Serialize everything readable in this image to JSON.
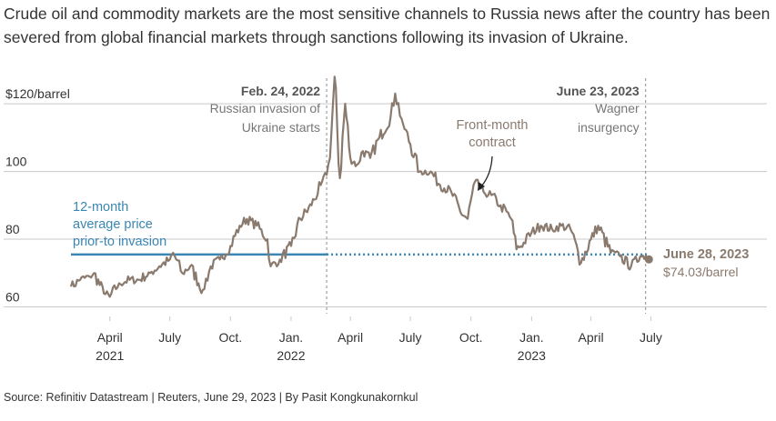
{
  "subtitle": "Crude oil and commodity markets are the most sensitive channels to Russia news after the country has been severed from global financial markets through sanctions following its invasion of Ukraine.",
  "source": "Source: Refinitiv Datastream | Reuters, June 29, 2023 | By Pasit Kongkunakornkul",
  "colors": {
    "price_line": "#8a7a6e",
    "average_line": "#3a86b4",
    "grid": "#c9c9c9",
    "event_line": "#8c8c8c",
    "text": "#333333",
    "muted_text": "#777777"
  },
  "chart_data": {
    "type": "line",
    "title": "",
    "xlabel": "",
    "ylabel": "$120/barrel",
    "ylim": [
      58,
      127
    ],
    "xlim": [
      "2021-02-01",
      "2023-07-10"
    ],
    "y_ticks": [
      {
        "value": 120,
        "label": "$120/barrel"
      },
      {
        "value": 100,
        "label": "100"
      },
      {
        "value": 80,
        "label": "80"
      },
      {
        "value": 60,
        "label": "60"
      }
    ],
    "x_ticks": [
      {
        "date": "2021-04-01",
        "label": "April",
        "sub": "2021"
      },
      {
        "date": "2021-07-01",
        "label": "July",
        "sub": ""
      },
      {
        "date": "2021-10-01",
        "label": "Oct.",
        "sub": ""
      },
      {
        "date": "2022-01-01",
        "label": "Jan.",
        "sub": "2022"
      },
      {
        "date": "2022-04-01",
        "label": "April",
        "sub": ""
      },
      {
        "date": "2022-07-01",
        "label": "July",
        "sub": ""
      },
      {
        "date": "2022-10-01",
        "label": "Oct.",
        "sub": ""
      },
      {
        "date": "2023-01-01",
        "label": "Jan.",
        "sub": "2023"
      },
      {
        "date": "2023-04-01",
        "label": "April",
        "sub": ""
      },
      {
        "date": "2023-07-01",
        "label": "July",
        "sub": ""
      }
    ],
    "series": [
      {
        "name": "Front-month contract",
        "x": [
          "2021-02-01",
          "2021-02-15",
          "2021-03-01",
          "2021-03-08",
          "2021-03-23",
          "2021-04-01",
          "2021-04-15",
          "2021-05-01",
          "2021-05-15",
          "2021-06-01",
          "2021-06-15",
          "2021-07-01",
          "2021-07-06",
          "2021-07-20",
          "2021-08-01",
          "2021-08-20",
          "2021-09-01",
          "2021-09-15",
          "2021-10-01",
          "2021-10-15",
          "2021-10-26",
          "2021-11-10",
          "2021-11-26",
          "2021-12-01",
          "2021-12-15",
          "2022-01-01",
          "2022-01-15",
          "2022-02-01",
          "2022-02-15",
          "2022-02-24",
          "2022-03-01",
          "2022-03-08",
          "2022-03-16",
          "2022-03-24",
          "2022-04-01",
          "2022-04-11",
          "2022-04-20",
          "2022-05-01",
          "2022-05-15",
          "2022-06-01",
          "2022-06-08",
          "2022-06-20",
          "2022-07-01",
          "2022-07-15",
          "2022-08-01",
          "2022-08-15",
          "2022-09-01",
          "2022-09-15",
          "2022-09-26",
          "2022-10-07",
          "2022-10-20",
          "2022-11-01",
          "2022-11-15",
          "2022-12-01",
          "2022-12-09",
          "2022-12-20",
          "2023-01-01",
          "2023-01-15",
          "2023-02-01",
          "2023-02-15",
          "2023-03-01",
          "2023-03-17",
          "2023-04-01",
          "2023-04-12",
          "2023-05-01",
          "2023-05-15",
          "2023-06-01",
          "2023-06-15",
          "2023-06-23",
          "2023-06-28"
        ],
        "values": [
          66,
          68,
          69,
          70,
          64,
          63,
          67,
          68,
          68,
          70,
          72,
          74,
          76,
          70,
          72,
          65,
          72,
          74,
          78,
          84,
          86,
          84,
          80,
          72,
          74,
          78,
          86,
          90,
          96,
          99,
          104,
          128,
          98,
          120,
          104,
          102,
          106,
          104,
          110,
          116,
          123,
          114,
          108,
          100,
          100,
          96,
          94,
          88,
          86,
          97,
          94,
          93,
          90,
          86,
          77,
          79,
          82,
          84,
          83,
          84,
          83,
          73,
          80,
          84,
          76,
          75,
          72,
          75,
          75,
          74.03
        ]
      },
      {
        "name": "12-month average price prior-to invasion",
        "value": 75.5,
        "solid_until": "2022-02-24",
        "dotted_until": "2023-06-28"
      }
    ],
    "events": [
      {
        "date": "2022-02-24",
        "title": "Feb. 24, 2022",
        "text": [
          "Russian invasion of",
          "Ukraine starts"
        ]
      },
      {
        "date": "2023-06-23",
        "title": "June 23, 2023",
        "text": [
          "Wagner",
          "insurgency"
        ]
      }
    ],
    "annotations": {
      "series_label": [
        "Front-month",
        "contract"
      ],
      "average_label": [
        "12-month",
        "average price",
        "prior-to invasion"
      ],
      "end_point": {
        "date": "June 28, 2023",
        "value_label": "$74.03/barrel"
      }
    }
  }
}
